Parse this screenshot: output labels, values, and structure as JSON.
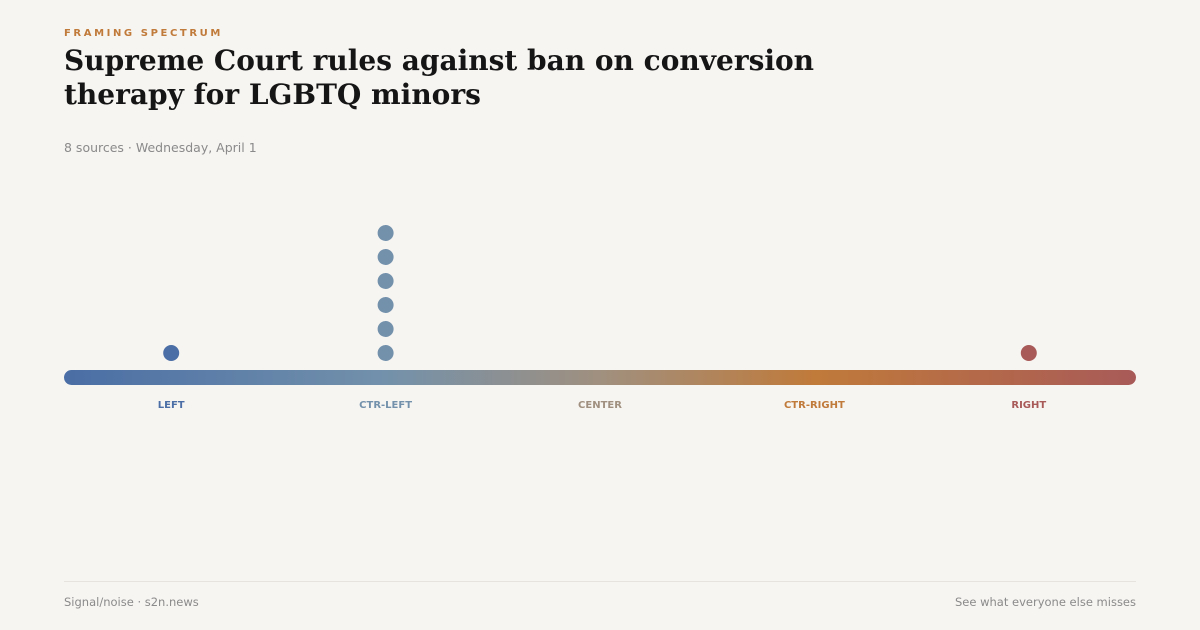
{
  "header": {
    "kicker": "FRAMING SPECTRUM",
    "title": "Supreme Court rules against ban on conversion therapy for LGBTQ minors",
    "meta": "8 sources · Wednesday, April 1"
  },
  "spectrum": {
    "categories": [
      {
        "label": "LEFT",
        "color": "#4a6ea5",
        "count": 1
      },
      {
        "label": "CTR-LEFT",
        "color": "#7391ab",
        "count": 6
      },
      {
        "label": "CENTER",
        "color": "#a0907f",
        "count": 0
      },
      {
        "label": "CTR-RIGHT",
        "color": "#c07a3a",
        "count": 0
      },
      {
        "label": "RIGHT",
        "color": "#a85a58",
        "count": 1
      }
    ]
  },
  "footer": {
    "left": "Signal/noise · s2n.news",
    "right": "See what everyone else misses"
  }
}
